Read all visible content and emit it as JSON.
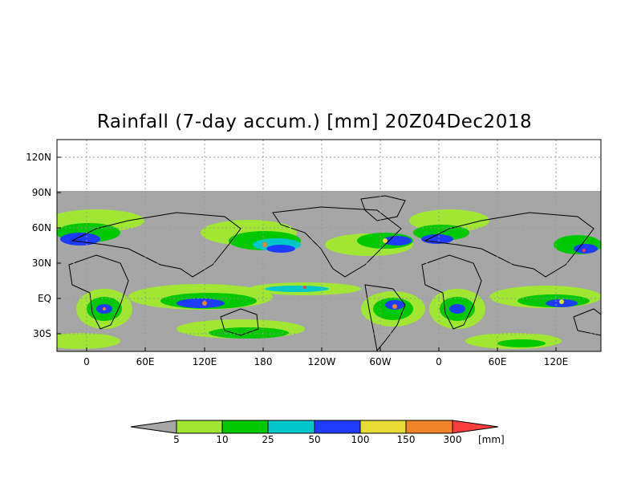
{
  "title": "Rainfall (7-day accum.) [mm] 20Z04Dec2018",
  "y_ticks": [
    "120N",
    "90N",
    "60N",
    "30N",
    "EQ",
    "30S"
  ],
  "x_ticks": [
    "0",
    "60E",
    "120E",
    "180",
    "120W",
    "60W",
    "0",
    "60E",
    "120E"
  ],
  "colorbar": {
    "unit": "[mm]",
    "labels": [
      "5",
      "10",
      "25",
      "50",
      "100",
      "150",
      "300"
    ],
    "colors": [
      "#a6a6a6",
      "#a0e632",
      "#00c800",
      "#00c8c8",
      "#1e3cff",
      "#e6dc32",
      "#f08228",
      "#fa3c3c"
    ]
  },
  "colors": {
    "no_data": "#ffffff",
    "land_dry": "#a6a6a6",
    "coast": "#000000",
    "grid": "#999999"
  }
}
